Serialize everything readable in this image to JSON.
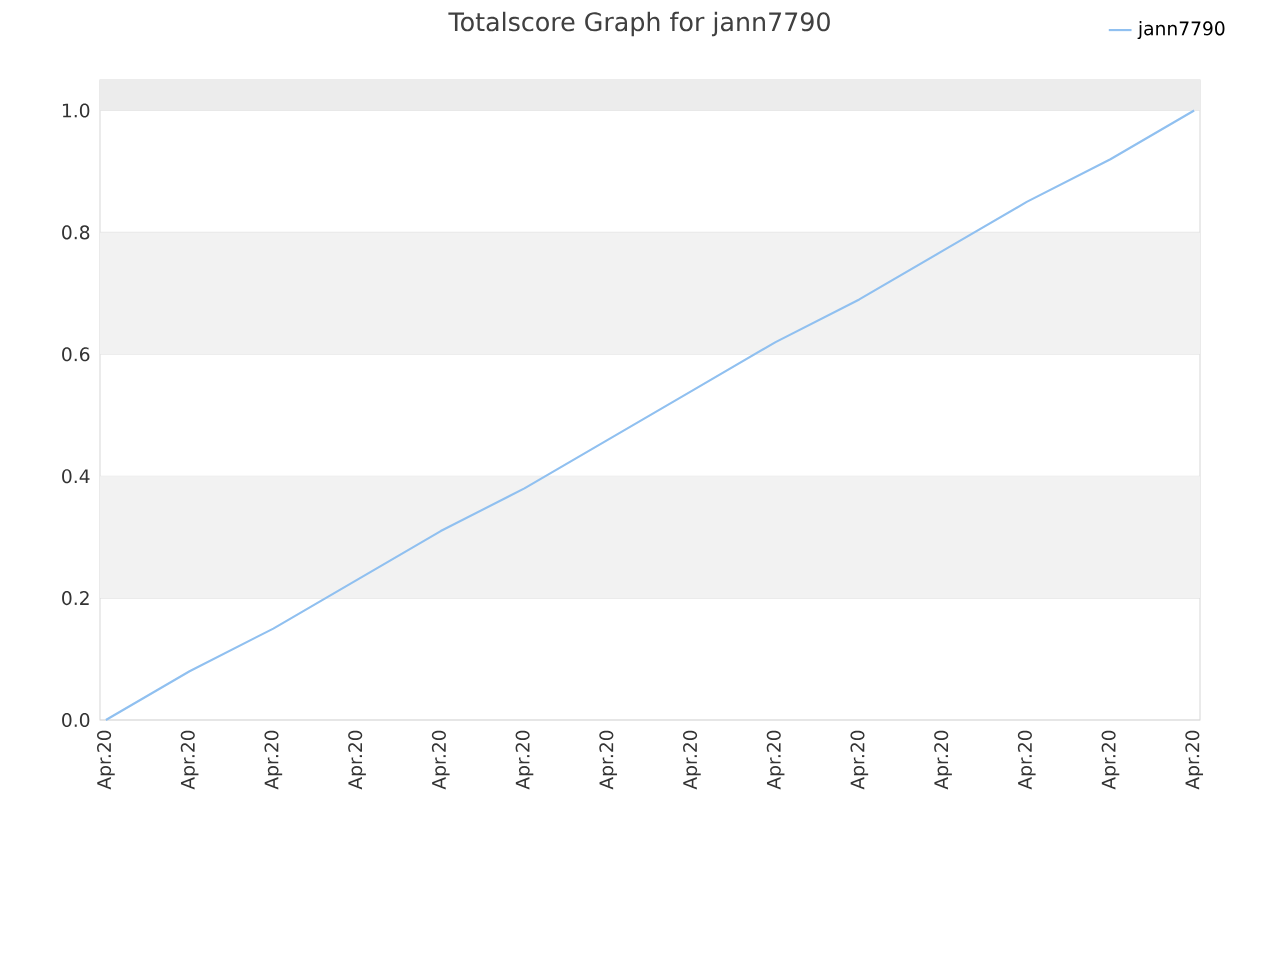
{
  "chart_data": {
    "type": "line",
    "title": "Totalscore Graph for jann7790",
    "categories": [
      "Apr.20",
      "Apr.20",
      "Apr.20",
      "Apr.20",
      "Apr.20",
      "Apr.20",
      "Apr.20",
      "Apr.20",
      "Apr.20",
      "Apr.20",
      "Apr.20",
      "Apr.20",
      "Apr.20",
      "Apr.20"
    ],
    "series": [
      {
        "name": "jann7790",
        "color": "#90c0f0",
        "values": [
          0,
          0.08,
          0.15,
          0.23,
          0.31,
          0.38,
          0.46,
          0.54,
          0.62,
          0.69,
          0.77,
          0.85,
          0.92,
          1.0
        ]
      }
    ],
    "ylim": [
      0,
      1.05
    ],
    "yticks": [
      {
        "value": 0,
        "label": "0.0"
      },
      {
        "value": 0.2,
        "label": "0.2"
      },
      {
        "value": 0.4,
        "label": "0.4"
      },
      {
        "value": 0.6,
        "label": "0.6"
      },
      {
        "value": 0.8,
        "label": "0.8"
      },
      {
        "value": 1,
        "label": "1.0"
      }
    ],
    "bands": [
      {
        "axis": "y",
        "from": 0.2,
        "to": 0.4,
        "color": "#f2f2f2"
      },
      {
        "axis": "y",
        "from": 0.6,
        "to": 0.8,
        "color": "#f2f2f2"
      },
      {
        "axis": "y",
        "from": 1.0,
        "to": 1.05,
        "color": "#ececec"
      }
    ],
    "grid": "y",
    "legend": "top right",
    "marker": "none",
    "line_style": "solid"
  }
}
